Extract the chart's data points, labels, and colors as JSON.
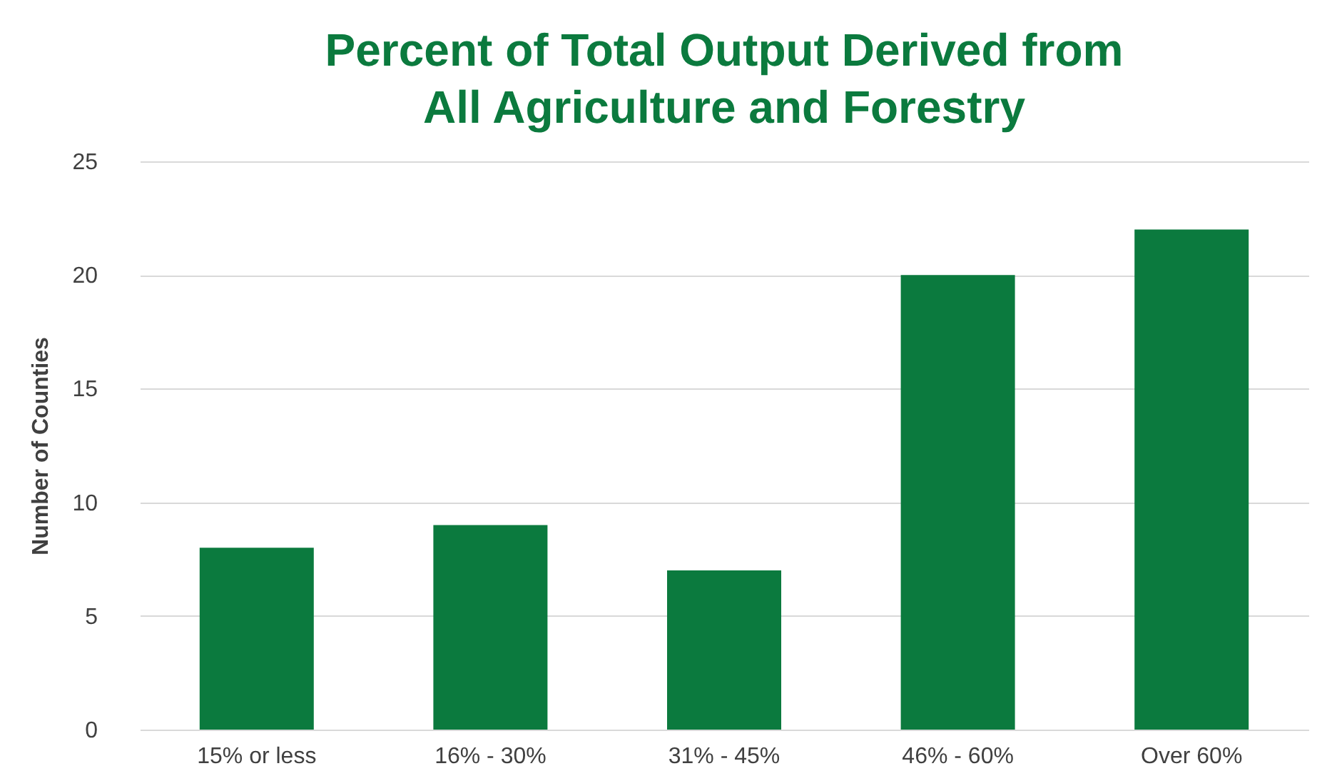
{
  "chart_data": {
    "type": "bar",
    "title": "Percent of Total Output Derived from\nAll Agriculture and Forestry",
    "ylabel": "Number of Counties",
    "categories": [
      "15% or less",
      "16% - 30%",
      "31% - 45%",
      "46% - 60%",
      "Over 60%"
    ],
    "values": [
      8,
      9,
      7,
      20,
      22
    ],
    "color": "#0b7a3e",
    "ylim": [
      0,
      25
    ],
    "yticks": [
      0,
      5,
      10,
      15,
      20,
      25
    ],
    "grid": "y"
  }
}
